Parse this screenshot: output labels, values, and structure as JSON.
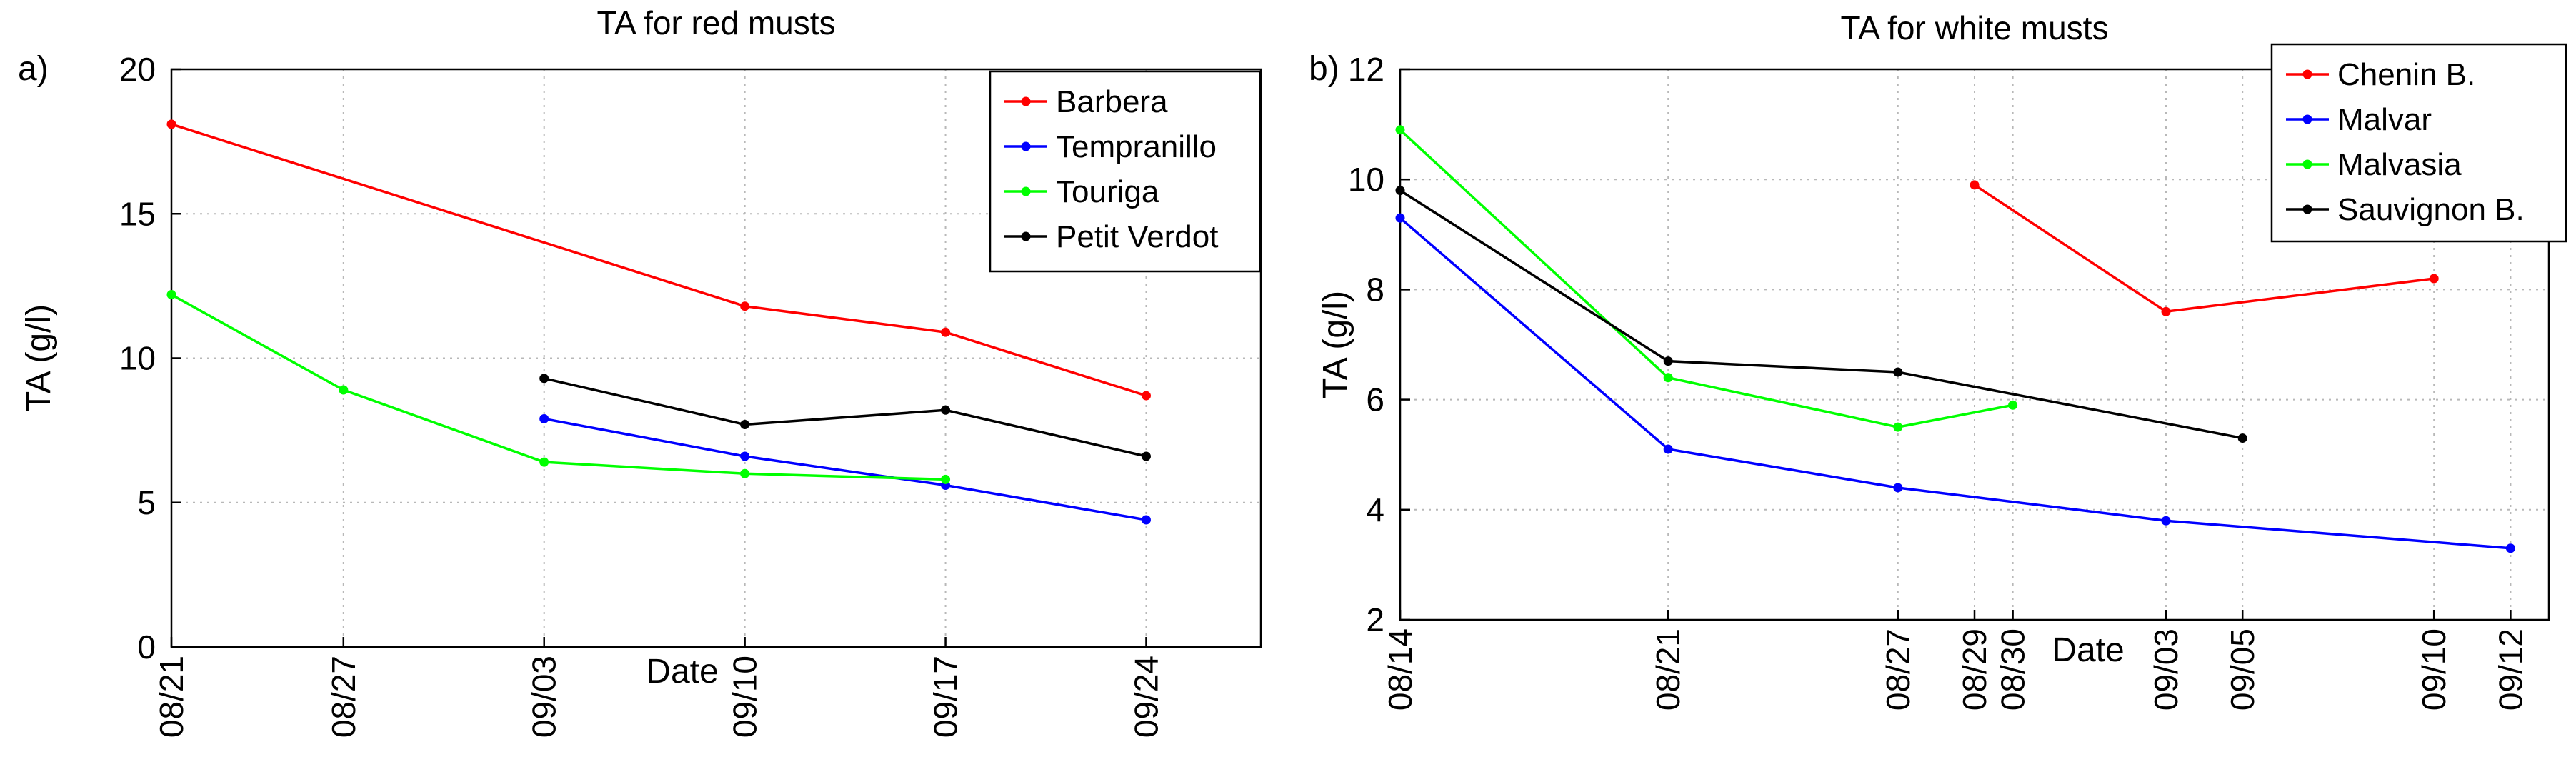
{
  "chart_data": [
    {
      "type": "line",
      "panel_label": "a)",
      "title": "TA for red musts",
      "xlabel": "Date",
      "ylabel": "TA (g/l)",
      "grid": true,
      "legend_position": "top-right",
      "x_ticks": [
        {
          "label": "08/21",
          "day": 0
        },
        {
          "label": "08/27",
          "day": 6
        },
        {
          "label": "09/03",
          "day": 13
        },
        {
          "label": "09/10",
          "day": 20
        },
        {
          "label": "09/17",
          "day": 27
        },
        {
          "label": "09/24",
          "day": 34
        }
      ],
      "xlim": [
        0,
        38
      ],
      "ylim": [
        0,
        20
      ],
      "y_ticks": [
        0,
        5,
        10,
        15,
        20
      ],
      "series": [
        {
          "name": "Barbera",
          "color": "#ff0000",
          "x": [
            0,
            20,
            27,
            34
          ],
          "y": [
            18.1,
            11.8,
            10.9,
            8.7
          ]
        },
        {
          "name": "Tempranillo",
          "color": "#0000ff",
          "x": [
            13,
            20,
            27,
            34
          ],
          "y": [
            7.9,
            6.6,
            5.6,
            4.4
          ]
        },
        {
          "name": "Touriga",
          "color": "#00ff00",
          "x": [
            0,
            6,
            13,
            20,
            27
          ],
          "y": [
            12.2,
            8.9,
            6.4,
            6.0,
            5.8
          ]
        },
        {
          "name": "Petit Verdot",
          "color": "#000000",
          "x": [
            13,
            20,
            27,
            34
          ],
          "y": [
            9.3,
            7.7,
            8.2,
            6.6
          ]
        }
      ]
    },
    {
      "type": "line",
      "panel_label": "b)",
      "title": "TA for white musts",
      "xlabel": "Date",
      "ylabel": "TA (g/l)",
      "grid": true,
      "legend_position": "top-right",
      "x_ticks": [
        {
          "label": "08/14",
          "day": 0
        },
        {
          "label": "08/21",
          "day": 7
        },
        {
          "label": "08/27",
          "day": 13
        },
        {
          "label": "08/29",
          "day": 15
        },
        {
          "label": "08/30",
          "day": 16
        },
        {
          "label": "09/03",
          "day": 20
        },
        {
          "label": "09/05",
          "day": 22
        },
        {
          "label": "09/10",
          "day": 27
        },
        {
          "label": "09/12",
          "day": 29
        }
      ],
      "xlim": [
        0,
        30
      ],
      "ylim": [
        2,
        12
      ],
      "y_ticks": [
        2,
        4,
        6,
        8,
        10,
        12
      ],
      "series": [
        {
          "name": "Chenin B.",
          "color": "#ff0000",
          "x": [
            15,
            20,
            27
          ],
          "y": [
            9.9,
            7.6,
            8.2
          ]
        },
        {
          "name": "Malvar",
          "color": "#0000ff",
          "x": [
            0,
            7,
            13,
            20,
            29
          ],
          "y": [
            9.3,
            5.1,
            4.4,
            3.8,
            3.3
          ]
        },
        {
          "name": "Malvasia",
          "color": "#00ff00",
          "x": [
            0,
            7,
            13,
            16
          ],
          "y": [
            10.9,
            6.4,
            5.5,
            5.9
          ]
        },
        {
          "name": "Sauvignon B.",
          "color": "#000000",
          "x": [
            0,
            7,
            13,
            22
          ],
          "y": [
            9.8,
            6.7,
            6.5,
            5.3
          ]
        }
      ]
    }
  ]
}
